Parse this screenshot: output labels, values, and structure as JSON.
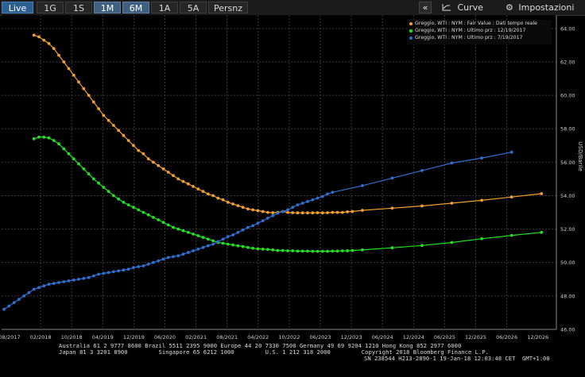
{
  "toolbar": {
    "tabs": [
      {
        "label": "Live"
      },
      {
        "label": "1G"
      },
      {
        "label": "1S"
      },
      {
        "label": "1M"
      },
      {
        "label": "6M"
      },
      {
        "label": "1A"
      },
      {
        "label": "5A"
      },
      {
        "label": "Persnz"
      }
    ],
    "collapse": "«",
    "curve_label": "Curve",
    "settings_label": "Impostazioni"
  },
  "footer": {
    "line1": "Australia 61 2 9777 8600 Brazil 5511 2395 9000 Europe 44 20 7330 7500 Germany 49 69 9204 1210 Hong Kong 852 2977 6000",
    "line2": "Japan 81 3 3201 8900         Singapore 65 6212 1000         U.S. 1 212 318 2000         Copyright 2018 Bloomberg Finance L.P.",
    "line3": "SN 238544 H213-2890-1 19-Jan-18 12:03:48 CET  GMT+1:00"
  },
  "chart_data": {
    "type": "line",
    "ylabel": "USD/Barile",
    "ylim": [
      46,
      64.8
    ],
    "y_ticks": [
      "46.00",
      "48.00",
      "50.00",
      "52.00",
      "54.00",
      "56.00",
      "58.00",
      "60.00",
      "62.00",
      "64.00"
    ],
    "x_ticks": [
      "08/2017",
      "02/2018",
      "10/2018",
      "04/2019",
      "12/2019",
      "06/2020",
      "02/2021",
      "08/2021",
      "04/2022",
      "10/2022",
      "06/2023",
      "12/2023",
      "06/2024",
      "12/2024",
      "06/2025",
      "12/2025",
      "06/2026",
      "12/2026"
    ],
    "grid": true,
    "legend_position": "top-right",
    "series": [
      {
        "name": "Greggio, WTI : NYM : Fair Value : Dati tempo reale",
        "color": "#f0a030",
        "points": [
          [
            0,
            63.6
          ],
          [
            1,
            63.5
          ],
          [
            2,
            63.3
          ],
          [
            3,
            63.1
          ],
          [
            4,
            62.8
          ],
          [
            5,
            62.4
          ],
          [
            6,
            62.0
          ],
          [
            7,
            61.6
          ],
          [
            8,
            61.2
          ],
          [
            9,
            60.8
          ],
          [
            10,
            60.4
          ],
          [
            11,
            60.0
          ],
          [
            12,
            59.6
          ],
          [
            13,
            59.2
          ],
          [
            14,
            58.8
          ],
          [
            15,
            58.5
          ],
          [
            16,
            58.2
          ],
          [
            17,
            57.9
          ],
          [
            18,
            57.6
          ],
          [
            19,
            57.3
          ],
          [
            20,
            57.0
          ],
          [
            21,
            56.7
          ],
          [
            22,
            56.5
          ],
          [
            23,
            56.2
          ],
          [
            24,
            56.0
          ],
          [
            25,
            55.8
          ],
          [
            26,
            55.6
          ],
          [
            27,
            55.4
          ],
          [
            28,
            55.2
          ],
          [
            29,
            55.0
          ],
          [
            30,
            54.85
          ],
          [
            31,
            54.7
          ],
          [
            32,
            54.55
          ],
          [
            33,
            54.4
          ],
          [
            34,
            54.25
          ],
          [
            35,
            54.1
          ],
          [
            36,
            54.0
          ],
          [
            37,
            53.85
          ],
          [
            38,
            53.75
          ],
          [
            39,
            53.6
          ],
          [
            40,
            53.5
          ],
          [
            41,
            53.4
          ],
          [
            42,
            53.3
          ],
          [
            43,
            53.2
          ],
          [
            44,
            53.15
          ],
          [
            45,
            53.1
          ],
          [
            46,
            53.05
          ],
          [
            47,
            53.0
          ],
          [
            48,
            52.98
          ],
          [
            49,
            53.0
          ],
          [
            50,
            53.05
          ],
          [
            51,
            53.0
          ],
          [
            52,
            52.98
          ],
          [
            53,
            52.97
          ],
          [
            54,
            52.97
          ],
          [
            55,
            52.97
          ],
          [
            56,
            52.97
          ],
          [
            57,
            52.98
          ],
          [
            58,
            52.97
          ],
          [
            59,
            52.98
          ],
          [
            60,
            53.0
          ],
          [
            61,
            53.0
          ],
          [
            62,
            53.0
          ],
          [
            63,
            53.03
          ],
          [
            64,
            53.05
          ],
          [
            66,
            53.12
          ],
          [
            72,
            53.25
          ],
          [
            78,
            53.38
          ],
          [
            84,
            53.55
          ],
          [
            90,
            53.72
          ],
          [
            96,
            53.92
          ],
          [
            102,
            54.12
          ]
        ]
      },
      {
        "name": "Greggio, WTI : NYM : Ultimo prz : 12/19/2017",
        "color": "#22e022",
        "points": [
          [
            0,
            57.4
          ],
          [
            1,
            57.5
          ],
          [
            2,
            57.5
          ],
          [
            3,
            57.45
          ],
          [
            4,
            57.3
          ],
          [
            5,
            57.1
          ],
          [
            6,
            56.8
          ],
          [
            7,
            56.5
          ],
          [
            8,
            56.2
          ],
          [
            9,
            55.9
          ],
          [
            10,
            55.6
          ],
          [
            11,
            55.3
          ],
          [
            12,
            55.0
          ],
          [
            13,
            54.75
          ],
          [
            14,
            54.5
          ],
          [
            15,
            54.25
          ],
          [
            16,
            54.0
          ],
          [
            17,
            53.8
          ],
          [
            18,
            53.6
          ],
          [
            19,
            53.45
          ],
          [
            20,
            53.3
          ],
          [
            21,
            53.15
          ],
          [
            22,
            53.0
          ],
          [
            23,
            52.85
          ],
          [
            24,
            52.7
          ],
          [
            25,
            52.55
          ],
          [
            26,
            52.4
          ],
          [
            27,
            52.25
          ],
          [
            28,
            52.1
          ],
          [
            29,
            52.0
          ],
          [
            30,
            51.9
          ],
          [
            31,
            51.8
          ],
          [
            32,
            51.7
          ],
          [
            33,
            51.6
          ],
          [
            34,
            51.5
          ],
          [
            35,
            51.4
          ],
          [
            36,
            51.3
          ],
          [
            37,
            51.2
          ],
          [
            38,
            51.15
          ],
          [
            39,
            51.1
          ],
          [
            40,
            51.05
          ],
          [
            41,
            51.0
          ],
          [
            42,
            50.95
          ],
          [
            43,
            50.9
          ],
          [
            44,
            50.85
          ],
          [
            45,
            50.82
          ],
          [
            46,
            50.8
          ],
          [
            47,
            50.78
          ],
          [
            48,
            50.75
          ],
          [
            49,
            50.72
          ],
          [
            50,
            50.72
          ],
          [
            51,
            50.7
          ],
          [
            52,
            50.7
          ],
          [
            53,
            50.68
          ],
          [
            54,
            50.68
          ],
          [
            55,
            50.68
          ],
          [
            56,
            50.67
          ],
          [
            57,
            50.67
          ],
          [
            58,
            50.67
          ],
          [
            59,
            50.67
          ],
          [
            60,
            50.68
          ],
          [
            61,
            50.68
          ],
          [
            62,
            50.7
          ],
          [
            63,
            50.7
          ],
          [
            64,
            50.72
          ],
          [
            66,
            50.75
          ],
          [
            72,
            50.88
          ],
          [
            78,
            51.02
          ],
          [
            84,
            51.2
          ],
          [
            90,
            51.42
          ],
          [
            96,
            51.62
          ],
          [
            102,
            51.8
          ]
        ]
      },
      {
        "name": "Greggio, WTI : NYM : Ultimo prz : 7/19/2017",
        "color": "#2f6fd0",
        "points": [
          [
            -6,
            47.2
          ],
          [
            -5,
            47.4
          ],
          [
            -4,
            47.6
          ],
          [
            -3,
            47.8
          ],
          [
            -2,
            48.0
          ],
          [
            -1,
            48.2
          ],
          [
            0,
            48.4
          ],
          [
            1,
            48.5
          ],
          [
            2,
            48.6
          ],
          [
            3,
            48.7
          ],
          [
            4,
            48.75
          ],
          [
            5,
            48.8
          ],
          [
            6,
            48.85
          ],
          [
            7,
            48.9
          ],
          [
            8,
            48.95
          ],
          [
            9,
            49.0
          ],
          [
            10,
            49.05
          ],
          [
            11,
            49.1
          ],
          [
            12,
            49.2
          ],
          [
            13,
            49.3
          ],
          [
            14,
            49.35
          ],
          [
            15,
            49.4
          ],
          [
            16,
            49.45
          ],
          [
            17,
            49.5
          ],
          [
            18,
            49.55
          ],
          [
            19,
            49.6
          ],
          [
            20,
            49.7
          ],
          [
            21,
            49.75
          ],
          [
            22,
            49.8
          ],
          [
            23,
            49.9
          ],
          [
            24,
            50.0
          ],
          [
            25,
            50.1
          ],
          [
            26,
            50.2
          ],
          [
            27,
            50.3
          ],
          [
            28,
            50.35
          ],
          [
            29,
            50.4
          ],
          [
            30,
            50.5
          ],
          [
            31,
            50.6
          ],
          [
            32,
            50.7
          ],
          [
            33,
            50.8
          ],
          [
            34,
            50.9
          ],
          [
            35,
            51.0
          ],
          [
            36,
            51.1
          ],
          [
            37,
            51.25
          ],
          [
            38,
            51.4
          ],
          [
            39,
            51.55
          ],
          [
            40,
            51.65
          ],
          [
            41,
            51.8
          ],
          [
            42,
            51.95
          ],
          [
            43,
            52.1
          ],
          [
            44,
            52.2
          ],
          [
            45,
            52.35
          ],
          [
            46,
            52.5
          ],
          [
            47,
            52.65
          ],
          [
            48,
            52.8
          ],
          [
            49,
            52.95
          ],
          [
            50,
            53.05
          ],
          [
            51,
            53.15
          ],
          [
            52,
            53.3
          ],
          [
            53,
            53.45
          ],
          [
            54,
            53.55
          ],
          [
            55,
            53.65
          ],
          [
            56,
            53.75
          ],
          [
            57,
            53.85
          ],
          [
            58,
            53.95
          ],
          [
            59,
            54.1
          ],
          [
            60,
            54.2
          ],
          [
            66,
            54.6
          ],
          [
            72,
            55.05
          ],
          [
            78,
            55.5
          ],
          [
            84,
            55.95
          ],
          [
            90,
            56.25
          ],
          [
            96,
            56.6
          ]
        ]
      }
    ]
  }
}
